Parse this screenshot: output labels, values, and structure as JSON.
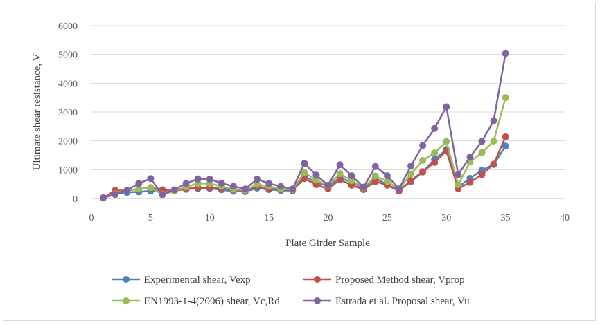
{
  "chart_data": {
    "type": "line",
    "title": "",
    "xlabel": "Plate Girder Sample",
    "ylabel": "Ultimate shear resistance, V",
    "xlim": [
      0,
      40
    ],
    "ylim": [
      0,
      6000
    ],
    "x_ticks": [
      0,
      5,
      10,
      15,
      20,
      25,
      30,
      35,
      40
    ],
    "y_ticks": [
      0,
      1000,
      2000,
      3000,
      4000,
      5000,
      6000
    ],
    "grid": "horizontal",
    "legend_position": "bottom",
    "x": [
      1,
      2,
      3,
      4,
      5,
      6,
      7,
      8,
      9,
      10,
      11,
      12,
      13,
      14,
      15,
      16,
      17,
      18,
      19,
      20,
      21,
      22,
      23,
      24,
      25,
      26,
      27,
      28,
      29,
      30,
      31,
      32,
      33,
      34,
      35
    ],
    "series": [
      {
        "name": "Experimental shear, Vexp",
        "color": "#4f81bd",
        "values": [
          20,
          170,
          210,
          230,
          260,
          270,
          280,
          320,
          350,
          350,
          300,
          250,
          240,
          360,
          310,
          280,
          270,
          770,
          560,
          420,
          720,
          560,
          350,
          710,
          470,
          300,
          580,
          920,
          1360,
          1700,
          400,
          700,
          980,
          1180,
          1820
        ]
      },
      {
        "name": "Proposed Method shear, Vprop",
        "color": "#c0504d",
        "values": [
          20,
          280,
          270,
          330,
          370,
          300,
          260,
          340,
          370,
          380,
          360,
          310,
          260,
          420,
          340,
          320,
          290,
          690,
          480,
          330,
          650,
          460,
          310,
          590,
          460,
          260,
          620,
          930,
          1250,
          1650,
          340,
          560,
          830,
          1190,
          2140
        ]
      },
      {
        "name": "EN1993-1-4(2006) shear, Vc,Rd",
        "color": "#9bbb59",
        "values": [
          20,
          160,
          270,
          340,
          380,
          140,
          260,
          400,
          520,
          520,
          420,
          320,
          290,
          490,
          420,
          330,
          310,
          900,
          640,
          440,
          860,
          620,
          370,
          780,
          590,
          330,
          850,
          1320,
          1580,
          1980,
          480,
          1270,
          1590,
          1990,
          3500
        ]
      },
      {
        "name": "Estrada et al. Proposal shear, Vu",
        "color": "#8064a2",
        "values": [
          30,
          140,
          280,
          520,
          690,
          130,
          300,
          520,
          680,
          670,
          530,
          420,
          330,
          670,
          520,
          420,
          330,
          1220,
          810,
          460,
          1170,
          790,
          390,
          1110,
          790,
          330,
          1130,
          1840,
          2430,
          3180,
          830,
          1440,
          1980,
          2700,
          5030
        ]
      }
    ]
  }
}
